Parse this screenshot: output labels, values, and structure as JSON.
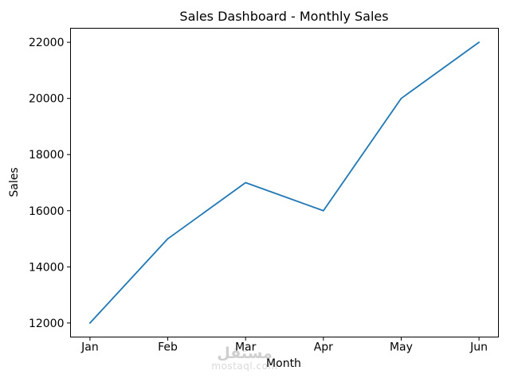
{
  "chart_data": {
    "type": "line",
    "title": "Sales Dashboard - Monthly Sales",
    "xlabel": "Month",
    "ylabel": "Sales",
    "categories": [
      "Jan",
      "Feb",
      "Mar",
      "Apr",
      "May",
      "Jun"
    ],
    "series": [
      {
        "name": "Monthly Sales",
        "values": [
          12000,
          15000,
          17000,
          16000,
          20000,
          22000
        ],
        "color": "#1f77b4"
      }
    ],
    "yticks": [
      12000,
      14000,
      16000,
      18000,
      20000,
      22000
    ],
    "ylim": [
      11500,
      22500
    ],
    "grid": false,
    "legend": "none",
    "axis_color": "#000000",
    "text_color": "#000000",
    "background": "#ffffff"
  },
  "watermark": {
    "logo_text": "مستقل",
    "site_text": "mostaql.com",
    "logo_color": "#cfcfcf",
    "site_color": "#d9d9d9"
  }
}
